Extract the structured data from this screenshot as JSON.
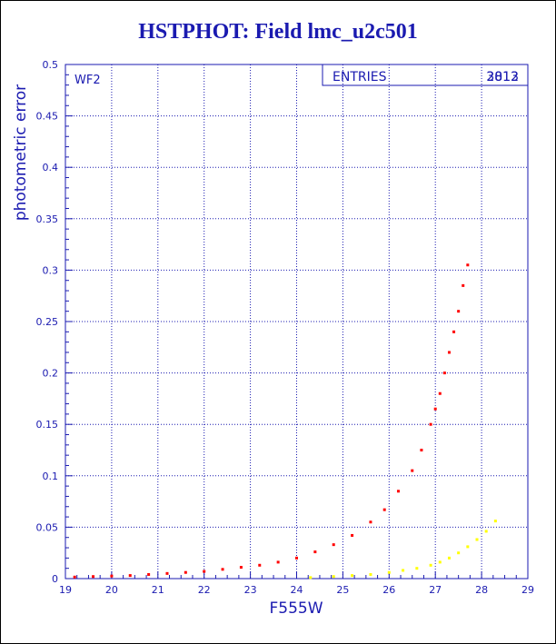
{
  "chart_data": {
    "type": "scatter",
    "title": "HSTPHOT: Field lmc_u2c501",
    "xlabel": "F555W",
    "ylabel": "photometric error",
    "xlim": [
      19,
      29
    ],
    "ylim": [
      0,
      0.5
    ],
    "x_ticks": [
      "19",
      "20",
      "21",
      "22",
      "23",
      "24",
      "25",
      "26",
      "27",
      "28",
      "29"
    ],
    "y_ticks": [
      "0",
      "0.05",
      "0.1",
      "0.15",
      "0.2",
      "0.25",
      "0.3",
      "0.35",
      "0.4",
      "0.45",
      "0.5"
    ],
    "grid": true,
    "panel_label": "WF2",
    "stats_box": {
      "label": "ENTRIES",
      "values": [
        "2812",
        "3013"
      ]
    },
    "colors": {
      "axis": "#1a1ab0",
      "grid": "#1a1ab0",
      "primary_series": "#ff0000",
      "secondary_series": "#ffff00"
    },
    "series": [
      {
        "color": "#ff0000",
        "x": [
          19.2,
          19.6,
          20.0,
          20.4,
          20.8,
          21.2,
          21.6,
          22.0,
          22.4,
          22.8,
          23.2,
          23.6,
          24.0,
          24.4,
          24.8,
          25.2,
          25.6,
          25.9,
          26.2,
          26.5,
          26.7,
          26.9,
          27.0,
          27.1,
          27.2,
          27.3,
          27.4,
          27.5,
          27.6,
          27.7
        ],
        "y": [
          0.0015,
          0.002,
          0.0025,
          0.003,
          0.004,
          0.005,
          0.006,
          0.007,
          0.009,
          0.011,
          0.013,
          0.016,
          0.02,
          0.026,
          0.033,
          0.042,
          0.055,
          0.067,
          0.085,
          0.105,
          0.125,
          0.15,
          0.165,
          0.18,
          0.2,
          0.22,
          0.24,
          0.26,
          0.285,
          0.305
        ]
      },
      {
        "color": "#ffff00",
        "x": [
          24.3,
          24.8,
          25.2,
          25.6,
          26.0,
          26.3,
          26.6,
          26.9,
          27.1,
          27.3,
          27.5,
          27.7,
          27.9,
          28.1,
          28.3
        ],
        "y": [
          0.001,
          0.002,
          0.003,
          0.004,
          0.006,
          0.008,
          0.01,
          0.013,
          0.016,
          0.02,
          0.025,
          0.031,
          0.038,
          0.046,
          0.056
        ]
      }
    ]
  }
}
